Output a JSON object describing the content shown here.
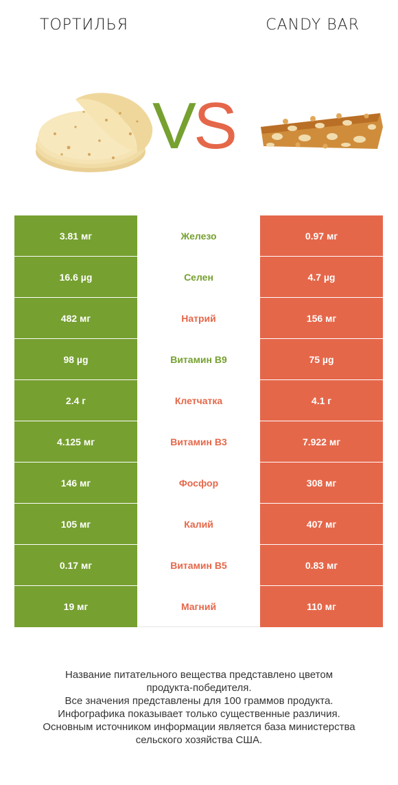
{
  "header": {
    "left_title": "ТОРТИЛЬЯ",
    "right_title": "CANDY BAR",
    "vs_v": "V",
    "vs_s": "S"
  },
  "colors": {
    "winner_left": "#76a030",
    "winner_right": "#e5674a"
  },
  "icons": {
    "left_food": "tortilla-stack-icon",
    "right_food": "candy-bar-icon"
  },
  "rows": [
    {
      "left": "3.81 мг",
      "name": "Железо",
      "right": "0.97 мг",
      "winner": "left"
    },
    {
      "left": "16.6 µg",
      "name": "Селен",
      "right": "4.7 µg",
      "winner": "left"
    },
    {
      "left": "482 мг",
      "name": "Натрий",
      "right": "156 мг",
      "winner": "right"
    },
    {
      "left": "98 µg",
      "name": "Витамин B9",
      "right": "75 µg",
      "winner": "left"
    },
    {
      "left": "2.4 г",
      "name": "Клетчатка",
      "right": "4.1 г",
      "winner": "right"
    },
    {
      "left": "4.125 мг",
      "name": "Витамин B3",
      "right": "7.922 мг",
      "winner": "right"
    },
    {
      "left": "146 мг",
      "name": "Фосфор",
      "right": "308 мг",
      "winner": "right"
    },
    {
      "left": "105 мг",
      "name": "Калий",
      "right": "407 мг",
      "winner": "right"
    },
    {
      "left": "0.17 мг",
      "name": "Витамин B5",
      "right": "0.83 мг",
      "winner": "right"
    },
    {
      "left": "19 мг",
      "name": "Магний",
      "right": "110 мг",
      "winner": "right"
    }
  ],
  "footer": {
    "line1": "Название питательного вещества представлено цветом",
    "line2": "продукта-победителя.",
    "line3": "Все значения представлены для 100 граммов продукта.",
    "line4": "Инфографика показывает только существенные различия.",
    "line5": "Основным источником информации является база министерства",
    "line6": "сельского хозяйства США."
  }
}
